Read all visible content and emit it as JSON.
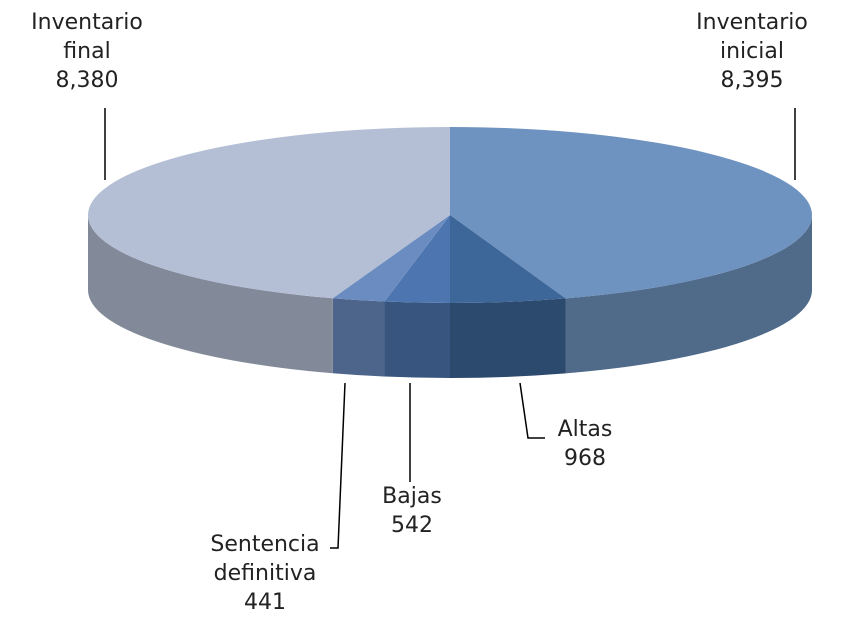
{
  "chart_data": {
    "type": "pie3d",
    "categories": [
      "Inventario inicial",
      "Altas",
      "Bajas",
      "Sentencia definitiva",
      "Inventario final"
    ],
    "values": [
      8395,
      968,
      542,
      441,
      8380
    ],
    "value_labels": [
      "8,395",
      "968",
      "542",
      "441",
      "8,380"
    ],
    "colors": [
      "#6f93c0",
      "#3d6699",
      "#4d76b0",
      "#6b8cc0",
      "#b4bfd6"
    ]
  }
}
